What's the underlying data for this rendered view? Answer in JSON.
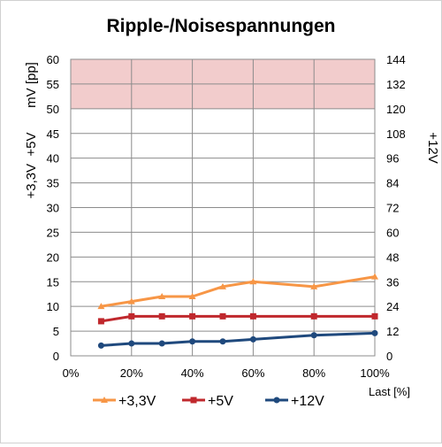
{
  "chart_data": {
    "type": "line",
    "title": "Ripple-/Noisespannungen",
    "xlabel": "Last [%]",
    "ylabel_left_unit": "mV [pp]",
    "ylabel_left_series": "+3,3V  +5V",
    "ylabel_right": "+12V",
    "xlim": [
      0,
      100
    ],
    "ylim_left": [
      0,
      60
    ],
    "ylim_right": [
      0,
      144
    ],
    "x_ticks": [
      0,
      20,
      40,
      60,
      80,
      100
    ],
    "x_tick_labels": [
      "0%",
      "20%",
      "40%",
      "60%",
      "80%",
      "100%"
    ],
    "y_left_ticks": [
      0,
      5,
      10,
      15,
      20,
      25,
      30,
      35,
      40,
      45,
      50,
      55,
      60
    ],
    "y_left_tick_labels": [
      "0",
      "5",
      "10",
      "15",
      "20",
      "25",
      "30",
      "35",
      "40",
      "45",
      "50",
      "55",
      "60"
    ],
    "y_right_ticks": [
      0,
      12,
      24,
      36,
      48,
      60,
      72,
      84,
      96,
      108,
      120,
      132,
      144
    ],
    "y_right_tick_labels": [
      "0",
      "12",
      "24",
      "36",
      "48",
      "60",
      "72",
      "84",
      "96",
      "108",
      "120",
      "132",
      "144"
    ],
    "grid": true,
    "limit_band": {
      "axis": "left",
      "from": 50,
      "to": 60,
      "color": "#f2cccc"
    },
    "legend": "bottom",
    "series": [
      {
        "name": "+3,3V",
        "axis": "left",
        "color": "#f79646",
        "marker": "triangle",
        "x": [
          10,
          20,
          30,
          40,
          50,
          60,
          80,
          100
        ],
        "values": [
          10,
          11,
          12,
          12,
          14,
          15,
          14,
          16
        ]
      },
      {
        "name": "+5V",
        "axis": "left",
        "color": "#c0282d",
        "marker": "square",
        "x": [
          10,
          20,
          30,
          40,
          50,
          60,
          80,
          100
        ],
        "values": [
          7,
          8,
          8,
          8,
          8,
          8,
          8,
          8
        ]
      },
      {
        "name": "+12V",
        "axis": "right",
        "color": "#1f497d",
        "marker": "circle",
        "x": [
          10,
          20,
          30,
          40,
          50,
          60,
          80,
          100
        ],
        "values": [
          5,
          6,
          6,
          7,
          7,
          8,
          10,
          11
        ]
      }
    ]
  }
}
